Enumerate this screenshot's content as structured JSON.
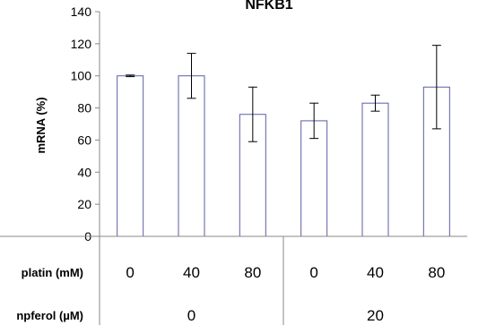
{
  "chart_data": {
    "type": "bar",
    "title": "NFKB1",
    "ylabel": "mRNA (%)",
    "ylim": [
      0,
      140
    ],
    "yticks": [
      0,
      20,
      40,
      60,
      80,
      100,
      120,
      140
    ],
    "grid": false,
    "bar_fill": "#ffffff",
    "bar_stroke": "#5b5ea6",
    "axis_color": "#888888",
    "rows": [
      {
        "label": "platin (mM)",
        "values": [
          "0",
          "40",
          "80",
          "0",
          "40",
          "80"
        ]
      },
      {
        "label": "npferol (µM)",
        "groups": [
          {
            "label": "0",
            "span": 3
          },
          {
            "label": "20",
            "span": 3
          }
        ]
      }
    ],
    "series": [
      {
        "values": [
          100,
          100,
          76,
          72,
          83,
          93
        ],
        "error": [
          0.5,
          14,
          17,
          11,
          5,
          26
        ]
      }
    ]
  }
}
